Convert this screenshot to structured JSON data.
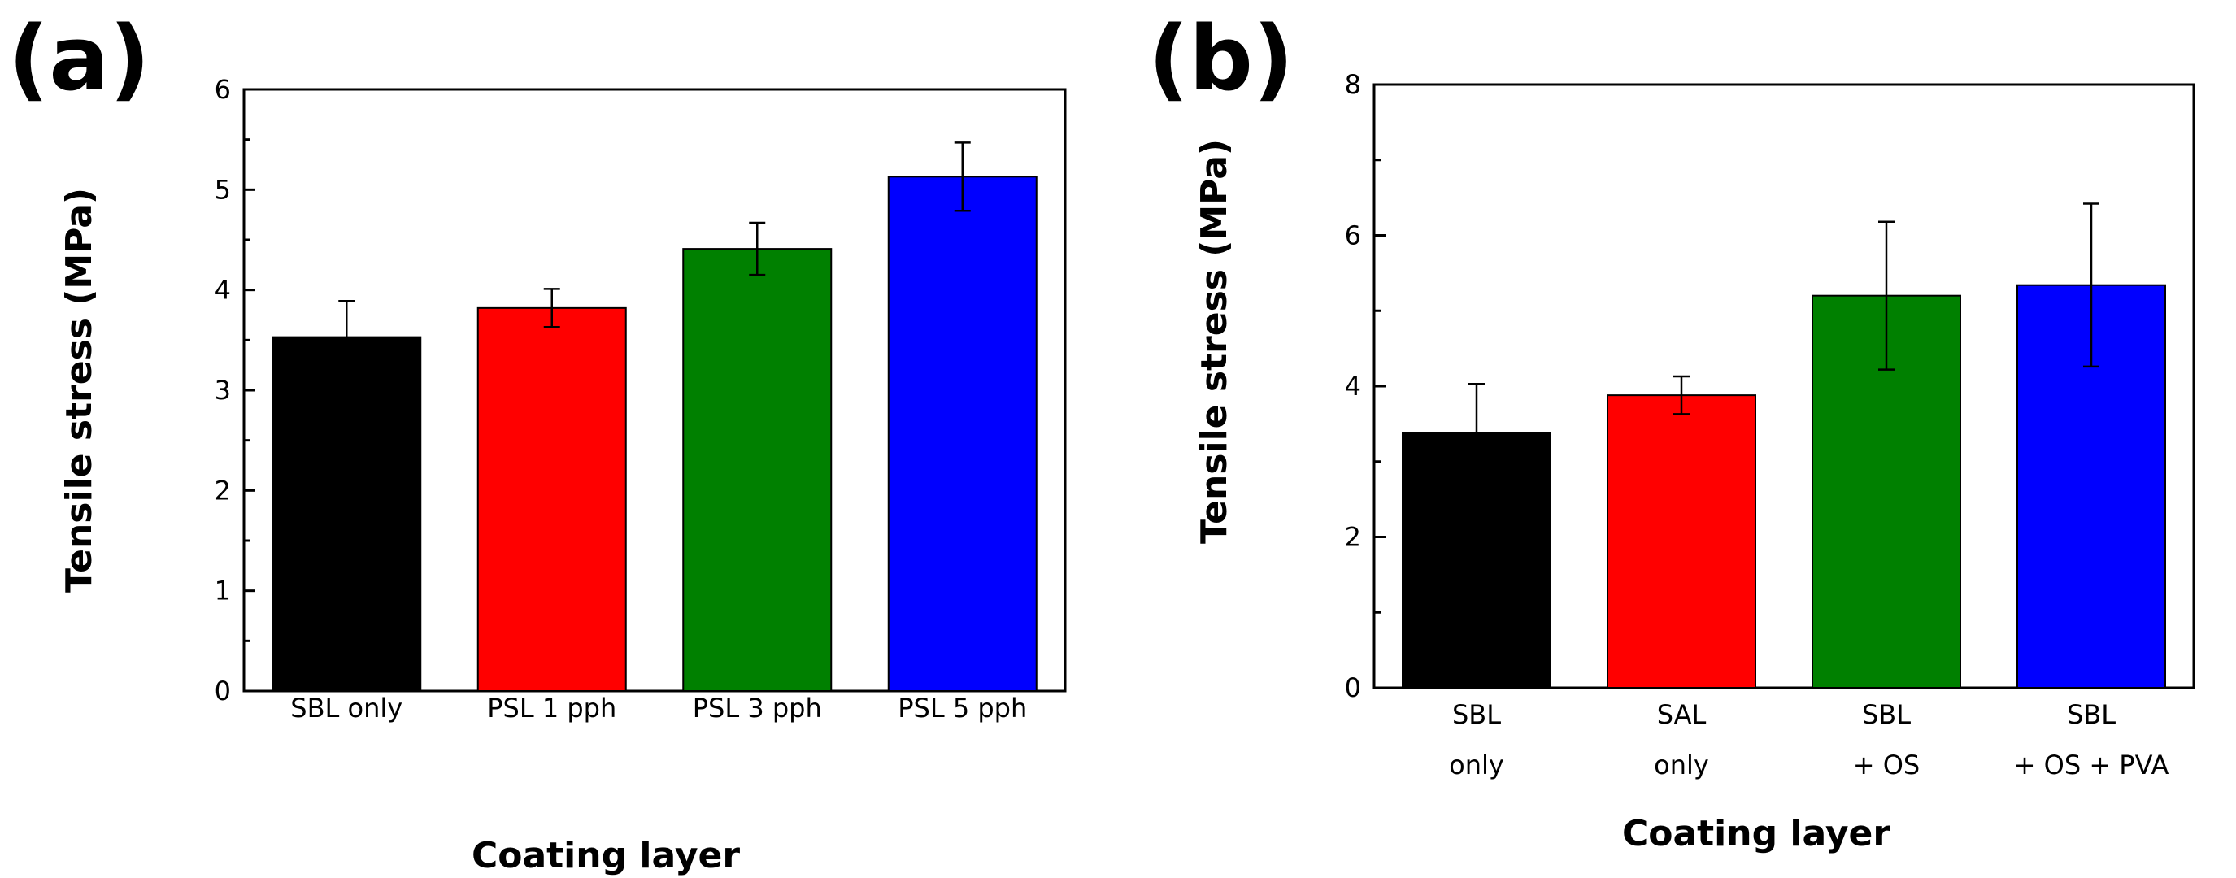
{
  "chart_data": [
    {
      "panel_label": "(a)",
      "type": "bar",
      "ylabel": "Tensile stress (MPa)",
      "xlabel": "Coating layer",
      "ylim": [
        0,
        6
      ],
      "ytick_step": 1,
      "ytick_labels": [
        "0",
        "1",
        "2",
        "3",
        "4",
        "5",
        "6"
      ],
      "categories": [
        [
          "SBL only"
        ],
        [
          "PSL 1 pph"
        ],
        [
          "PSL 3 pph"
        ],
        [
          "PSL 5 pph"
        ]
      ],
      "values": [
        3.53,
        3.82,
        4.41,
        5.13
      ],
      "errors": [
        0.36,
        0.19,
        0.26,
        0.34
      ],
      "colors": [
        "#000000",
        "#ff0000",
        "#008000",
        "#0000ff"
      ]
    },
    {
      "panel_label": "(b)",
      "type": "bar",
      "ylabel": "Tensile stress (MPa)",
      "xlabel": "Coating layer",
      "ylim": [
        0,
        8
      ],
      "ytick_step": 2,
      "ytick_labels": [
        "0",
        "2",
        "4",
        "6",
        "8"
      ],
      "categories": [
        [
          "SBL",
          "only"
        ],
        [
          "SAL",
          "only"
        ],
        [
          "SBL",
          "+ OS"
        ],
        [
          "SBL",
          "+ OS + PVA"
        ]
      ],
      "values": [
        3.38,
        3.88,
        5.2,
        5.34
      ],
      "errors": [
        0.65,
        0.25,
        0.98,
        1.08
      ],
      "colors": [
        "#000000",
        "#ff0000",
        "#008000",
        "#0000ff"
      ]
    }
  ]
}
